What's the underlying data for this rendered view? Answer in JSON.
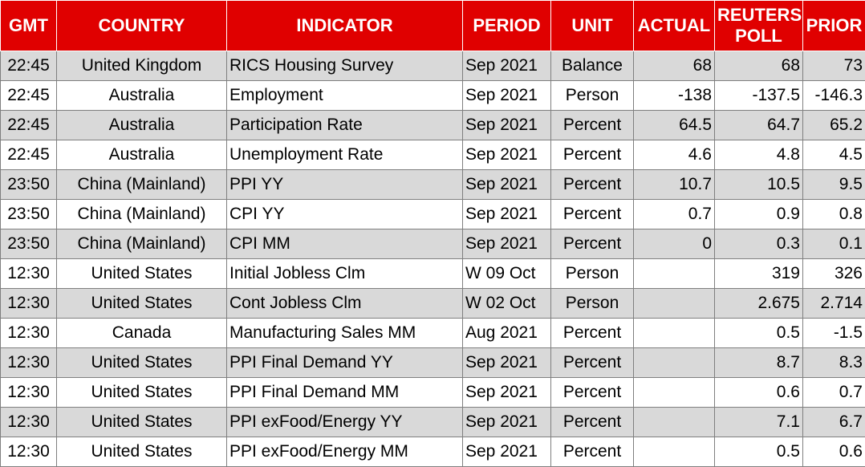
{
  "colors": {
    "header_bg": "#e00000",
    "header_text": "#ffffff",
    "stripe": "#d9d9d9"
  },
  "table": {
    "headers": {
      "gmt": "GMT",
      "country": "COUNTRY",
      "indicator": "INDICATOR",
      "period": "PERIOD",
      "unit": "UNIT",
      "actual": "ACTUAL",
      "poll_line1": "REUTERS",
      "poll_line2": "POLL",
      "prior": "PRIOR"
    },
    "rows": [
      [
        "22:45",
        "United Kingdom",
        "RICS Housing Survey",
        "Sep 2021",
        "Balance",
        "68",
        "68",
        "73"
      ],
      [
        "22:45",
        "Australia",
        "Employment",
        "Sep 2021",
        "Person",
        "-138",
        "-137.5",
        "-146.3"
      ],
      [
        "22:45",
        "Australia",
        "Participation Rate",
        "Sep 2021",
        "Percent",
        "64.5",
        "64.7",
        "65.2"
      ],
      [
        "22:45",
        "Australia",
        "Unemployment Rate",
        "Sep 2021",
        "Percent",
        "4.6",
        "4.8",
        "4.5"
      ],
      [
        "23:50",
        "China (Mainland)",
        "PPI YY",
        "Sep 2021",
        "Percent",
        "10.7",
        "10.5",
        "9.5"
      ],
      [
        "23:50",
        "China (Mainland)",
        "CPI YY",
        "Sep 2021",
        "Percent",
        "0.7",
        "0.9",
        "0.8"
      ],
      [
        "23:50",
        "China (Mainland)",
        "CPI MM",
        "Sep 2021",
        "Percent",
        "0",
        "0.3",
        "0.1"
      ],
      [
        "12:30",
        "United States",
        "Initial Jobless Clm",
        "W 09 Oct",
        "Person",
        "",
        "319",
        "326"
      ],
      [
        "12:30",
        "United States",
        "Cont Jobless Clm",
        "W 02 Oct",
        "Person",
        "",
        "2.675",
        "2.714"
      ],
      [
        "12:30",
        "Canada",
        "Manufacturing Sales MM",
        "Aug 2021",
        "Percent",
        "",
        "0.5",
        "-1.5"
      ],
      [
        "12:30",
        "United States",
        "PPI Final Demand YY",
        "Sep 2021",
        "Percent",
        "",
        "8.7",
        "8.3"
      ],
      [
        "12:30",
        "United States",
        "PPI Final Demand MM",
        "Sep 2021",
        "Percent",
        "",
        "0.6",
        "0.7"
      ],
      [
        "12:30",
        "United States",
        "PPI exFood/Energy YY",
        "Sep 2021",
        "Percent",
        "",
        "7.1",
        "6.7"
      ],
      [
        "12:30",
        "United States",
        "PPI exFood/Energy MM",
        "Sep 2021",
        "Percent",
        "",
        "0.5",
        "0.6"
      ]
    ]
  }
}
